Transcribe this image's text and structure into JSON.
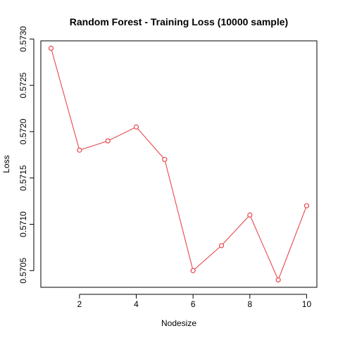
{
  "chart_data": {
    "type": "line",
    "title": "Random Forest - Training Loss (10000 sample)",
    "xlabel": "Nodesize",
    "ylabel": "Loss",
    "x": [
      1,
      2,
      3,
      4,
      5,
      6,
      7,
      8,
      9,
      10
    ],
    "series": [
      {
        "values": [
          0.5729,
          0.5718,
          0.5719,
          0.57205,
          0.5717,
          0.5705,
          0.57077,
          0.5711,
          0.5704,
          0.5712
        ]
      }
    ],
    "xlim": [
      0.64,
      10.36
    ],
    "ylim": [
      0.57032,
      0.57298
    ],
    "x_ticks": [
      2,
      4,
      6,
      8,
      10
    ],
    "x_tick_labels": [
      "2",
      "4",
      "6",
      "8",
      "10"
    ],
    "y_ticks": [
      0.5705,
      0.571,
      0.5715,
      0.572,
      0.5725,
      0.573
    ],
    "y_tick_labels": [
      "0.5705",
      "0.5710",
      "0.5715",
      "0.5720",
      "0.5725",
      "0.5730"
    ],
    "grid": false,
    "legend": "none",
    "colors": {
      "series": "#e8474c",
      "axis": "#000000",
      "background": "#ffffff"
    }
  }
}
